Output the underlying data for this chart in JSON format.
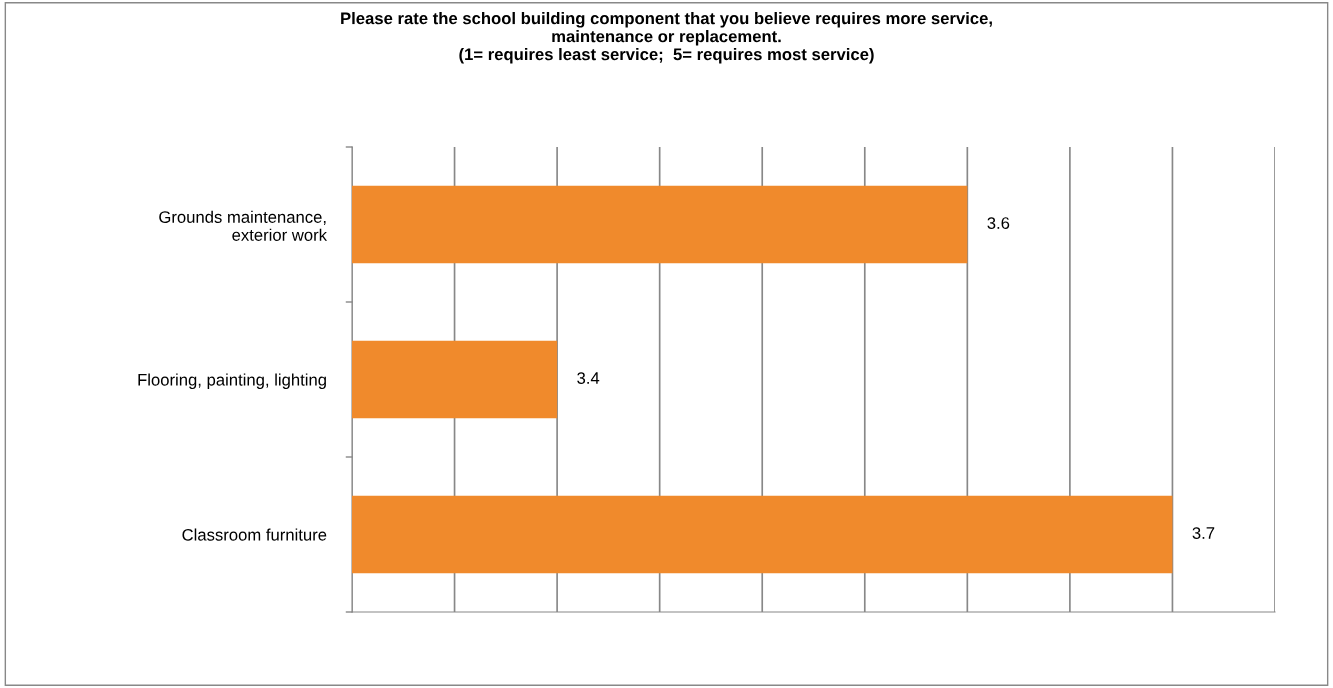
{
  "chart_data": {
    "type": "bar",
    "orientation": "horizontal",
    "title": "Please rate the school building component that you believe requires more service,\nmaintenance or replacement.\n(1= requires least service;  5= requires most service)",
    "categories": [
      "Grounds maintenance,\nexterior work",
      "Flooring, painting, lighting",
      "Classroom furniture"
    ],
    "values": [
      3.6,
      3.4,
      3.7
    ],
    "color": "#f08a2c",
    "data_labels": true,
    "xlim": [
      3.3,
      3.75
    ],
    "xticks": [
      {
        "value": 3.3,
        "label": null
      },
      {
        "value": 3.35,
        "label": null
      },
      {
        "value": 3.4,
        "label": null
      },
      {
        "value": 3.45,
        "label": null
      },
      {
        "value": 3.5,
        "label": null
      },
      {
        "value": 3.55,
        "label": null
      },
      {
        "value": 3.6,
        "label": null
      },
      {
        "value": 3.65,
        "label": null
      },
      {
        "value": 3.7,
        "label": null
      },
      {
        "value": 3.75,
        "label": null
      }
    ],
    "grid": "x",
    "tick_labels": "y"
  }
}
